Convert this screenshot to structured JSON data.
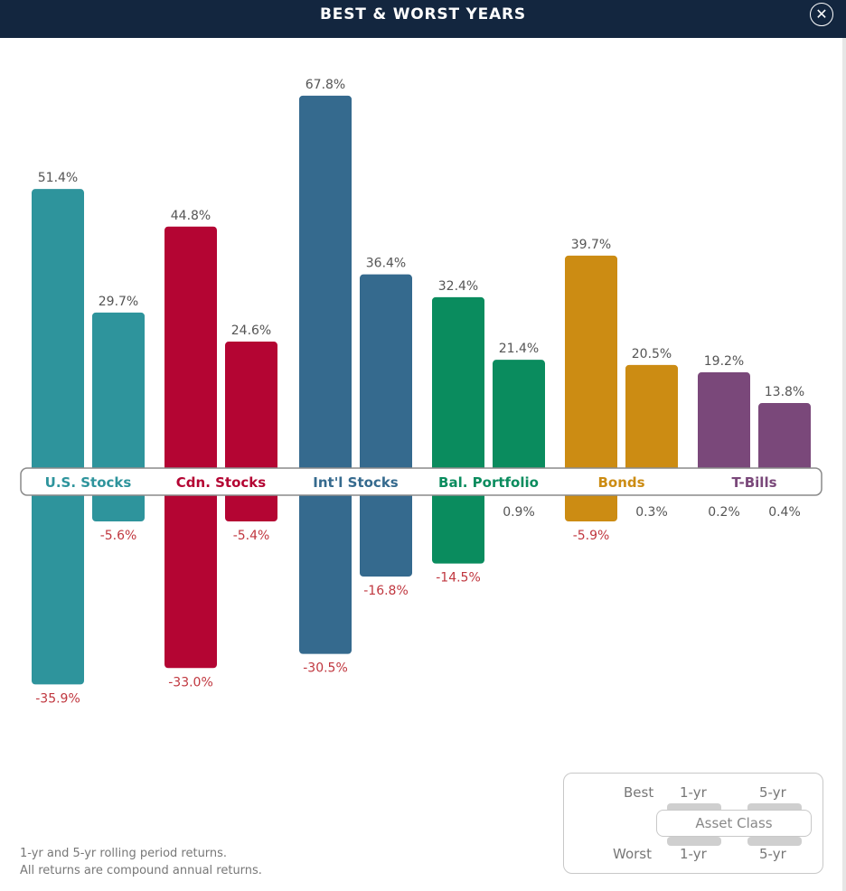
{
  "header": {
    "title": "BEST & WORST YEARS"
  },
  "chart_data": {
    "type": "bar",
    "categories": [
      "U.S. Stocks",
      "Cdn. Stocks",
      "Int'l Stocks",
      "Bal. Portfolio",
      "Bonds",
      "T-Bills"
    ],
    "colors": [
      "#2e949c",
      "#b40533",
      "#356a8e",
      "#0a8c5e",
      "#cc8c13",
      "#7a487a"
    ],
    "best_1yr": [
      51.4,
      44.8,
      67.8,
      32.4,
      39.7,
      19.2
    ],
    "best_5yr": [
      29.7,
      24.6,
      36.4,
      21.4,
      20.5,
      13.8
    ],
    "worst_1yr": [
      -35.9,
      -33.0,
      -30.5,
      -14.5,
      -5.9,
      0.2
    ],
    "worst_5yr": [
      -5.6,
      -5.4,
      -16.8,
      0.9,
      0.3,
      0.4
    ],
    "labels": {
      "best_1yr": [
        "51.4%",
        "44.8%",
        "67.8%",
        "32.4%",
        "39.7%",
        "19.2%"
      ],
      "best_5yr": [
        "29.7%",
        "24.6%",
        "36.4%",
        "21.4%",
        "20.5%",
        "13.8%"
      ],
      "worst_1yr": [
        "-35.9%",
        "-33.0%",
        "-30.5%",
        "-14.5%",
        "-5.9%",
        "0.2%"
      ],
      "worst_5yr": [
        "-5.6%",
        "-5.4%",
        "-16.8%",
        "0.9%",
        "0.3%",
        "0.4%"
      ]
    },
    "negative_label_color": "#c0373f",
    "positive_label_color": "#555555"
  },
  "footnote": {
    "line1": "1-yr and 5-yr rolling period returns.",
    "line2": "All returns are compound annual returns."
  },
  "legend": {
    "best": "Best",
    "worst": "Worst",
    "one_yr": "1-yr",
    "five_yr": "5-yr",
    "asset_class": "Asset Class"
  }
}
